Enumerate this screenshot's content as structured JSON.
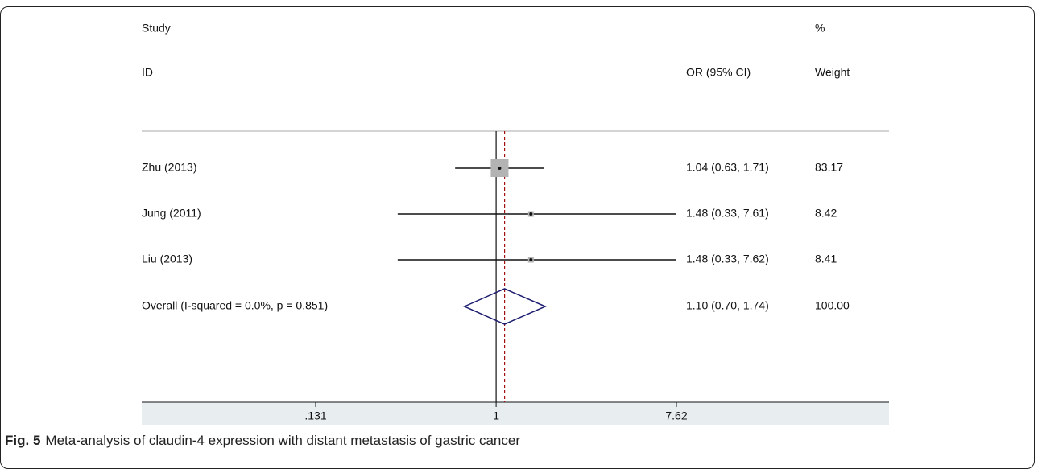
{
  "chart_data": {
    "type": "forest",
    "study_header": [
      "Study",
      "ID"
    ],
    "ci_header": "OR (95% CI)",
    "weight_header": [
      "%",
      "Weight"
    ],
    "categories": [
      "Zhu (2013)",
      "Jung (2011)",
      "Liu (2013)"
    ],
    "values": [
      1.04,
      1.48,
      1.48
    ],
    "lower": [
      0.63,
      0.33,
      0.33
    ],
    "upper": [
      1.71,
      7.61,
      7.62
    ],
    "value_labels": [
      "1.04 (0.63, 1.71)",
      "1.48 (0.33, 7.61)",
      "1.48 (0.33, 7.62)"
    ],
    "weights": [
      83.17,
      8.42,
      8.41
    ],
    "overall": {
      "name": "Overall  (I-squared = 0.0%, p = 0.851)",
      "value": 1.1,
      "lower": 0.7,
      "upper": 1.74,
      "value_label": "1.10 (0.70, 1.74)",
      "weight": {
        "value": 100,
        "label": "100.00"
      }
    },
    "log_x": true,
    "xlim": [
      0.131,
      7.62
    ],
    "xticks": [
      {
        "value": 0.131,
        "label": ".131"
      },
      1,
      7.62
    ],
    "null_value": 1,
    "box_color": "#b3b3b3",
    "diamond_color": "#1c1c70",
    "overall_line_color": "#a01010",
    "caption_label": "Fig. 5",
    "caption": "Meta-analysis of claudin-4 expression with distant metastasis of gastric cancer"
  }
}
